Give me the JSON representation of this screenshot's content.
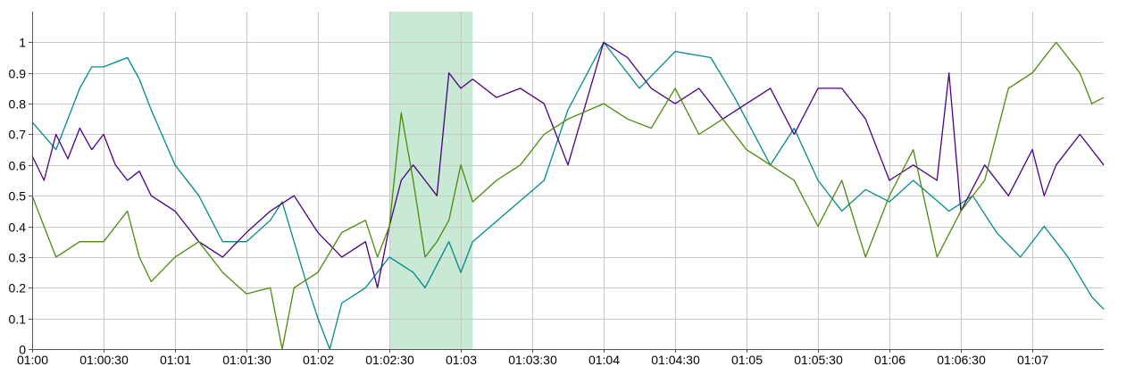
{
  "chart_data": {
    "type": "line",
    "title": "",
    "xlabel": "",
    "ylabel": "",
    "grid": true,
    "legend": "none",
    "xlim": [
      "01:00",
      "01:07:30"
    ],
    "ylim": [
      0,
      1.1
    ],
    "x_tick_labels": [
      "01:00",
      "01:00:30",
      "01:01",
      "01:01:30",
      "01:02",
      "01:02:30",
      "01:03",
      "01:03:30",
      "01:04",
      "01:04:30",
      "01:05",
      "01:05:30",
      "01:06",
      "01:06:30",
      "01:07"
    ],
    "y_tick_labels": [
      "0",
      "0.1",
      "0.2",
      "0.3",
      "0.4",
      "0.5",
      "0.6",
      "0.7",
      "0.8",
      "0.9",
      "1"
    ],
    "highlight_band": {
      "from": "01:02:30",
      "to": "01:03:05",
      "color": "#c8e9d4"
    },
    "series": [
      {
        "color": "#008b8b",
        "x": [
          "01:00:00",
          "01:00:10",
          "01:00:20",
          "01:00:25",
          "01:00:30",
          "01:00:40",
          "01:00:45",
          "01:00:50",
          "01:01:00",
          "01:01:10",
          "01:01:20",
          "01:01:30",
          "01:01:40",
          "01:01:45",
          "01:01:50",
          "01:01:55",
          "01:02:00",
          "01:02:05",
          "01:02:10",
          "01:02:20",
          "01:02:30",
          "01:02:40",
          "01:02:45",
          "01:02:55",
          "01:03:00",
          "01:03:05",
          "01:03:20",
          "01:03:35",
          "01:03:45",
          "01:04:00",
          "01:04:15",
          "01:04:30",
          "01:04:45",
          "01:04:55",
          "01:05:10",
          "01:05:20",
          "01:05:30",
          "01:05:40",
          "01:05:50",
          "01:06:00",
          "01:06:10",
          "01:06:25",
          "01:06:35",
          "01:06:45",
          "01:06:55",
          "01:07:05",
          "01:07:15",
          "01:07:25",
          "01:07:30"
        ],
        "y": [
          0.74,
          0.65,
          0.85,
          0.92,
          0.92,
          0.95,
          0.88,
          0.78,
          0.6,
          0.5,
          0.35,
          0.35,
          0.42,
          0.48,
          0.35,
          0.22,
          0.1,
          0.0,
          0.15,
          0.2,
          0.3,
          0.25,
          0.2,
          0.35,
          0.25,
          0.35,
          0.45,
          0.55,
          0.78,
          1.0,
          0.85,
          0.97,
          0.95,
          0.82,
          0.6,
          0.72,
          0.55,
          0.45,
          0.52,
          0.48,
          0.55,
          0.45,
          0.5,
          0.38,
          0.3,
          0.4,
          0.3,
          0.17,
          0.13
        ]
      },
      {
        "color": "#4b0082",
        "x": [
          "01:00:00",
          "01:00:05",
          "01:00:10",
          "01:00:15",
          "01:00:20",
          "01:00:25",
          "01:00:30",
          "01:00:35",
          "01:00:40",
          "01:00:45",
          "01:00:50",
          "01:01:00",
          "01:01:10",
          "01:01:20",
          "01:01:30",
          "01:01:40",
          "01:01:50",
          "01:02:00",
          "01:02:10",
          "01:02:20",
          "01:02:25",
          "01:02:30",
          "01:02:35",
          "01:02:40",
          "01:02:45",
          "01:02:50",
          "01:02:55",
          "01:03:00",
          "01:03:05",
          "01:03:15",
          "01:03:25",
          "01:03:35",
          "01:03:45",
          "01:04:00",
          "01:04:10",
          "01:04:20",
          "01:04:30",
          "01:04:40",
          "01:04:50",
          "01:05:00",
          "01:05:10",
          "01:05:20",
          "01:05:30",
          "01:05:40",
          "01:05:50",
          "01:06:00",
          "01:06:10",
          "01:06:20",
          "01:06:25",
          "01:06:30",
          "01:06:40",
          "01:06:50",
          "01:07:00",
          "01:07:05",
          "01:07:10",
          "01:07:20",
          "01:07:30"
        ],
        "y": [
          0.63,
          0.55,
          0.7,
          0.62,
          0.72,
          0.65,
          0.7,
          0.6,
          0.55,
          0.58,
          0.5,
          0.45,
          0.35,
          0.3,
          0.38,
          0.45,
          0.5,
          0.38,
          0.3,
          0.35,
          0.2,
          0.4,
          0.55,
          0.6,
          0.55,
          0.5,
          0.9,
          0.85,
          0.88,
          0.82,
          0.85,
          0.8,
          0.6,
          1.0,
          0.95,
          0.85,
          0.8,
          0.85,
          0.75,
          0.8,
          0.85,
          0.7,
          0.85,
          0.85,
          0.75,
          0.55,
          0.6,
          0.55,
          0.9,
          0.45,
          0.6,
          0.5,
          0.65,
          0.5,
          0.6,
          0.7,
          0.6
        ]
      },
      {
        "color": "#4d8a0b",
        "x": [
          "01:00:00",
          "01:00:05",
          "01:00:10",
          "01:00:20",
          "01:00:30",
          "01:00:40",
          "01:00:45",
          "01:00:50",
          "01:01:00",
          "01:01:10",
          "01:01:20",
          "01:01:30",
          "01:01:40",
          "01:01:45",
          "01:01:50",
          "01:02:00",
          "01:02:10",
          "01:02:20",
          "01:02:25",
          "01:02:30",
          "01:02:35",
          "01:02:40",
          "01:02:45",
          "01:02:50",
          "01:02:55",
          "01:03:00",
          "01:03:05",
          "01:03:15",
          "01:03:25",
          "01:03:35",
          "01:03:45",
          "01:04:00",
          "01:04:10",
          "01:04:20",
          "01:04:30",
          "01:04:40",
          "01:04:50",
          "01:05:00",
          "01:05:10",
          "01:05:20",
          "01:05:30",
          "01:05:40",
          "01:05:50",
          "01:06:00",
          "01:06:10",
          "01:06:20",
          "01:06:30",
          "01:06:40",
          "01:06:50",
          "01:07:00",
          "01:07:05",
          "01:07:10",
          "01:07:15",
          "01:07:20",
          "01:07:25",
          "01:07:30"
        ],
        "y": [
          0.5,
          0.4,
          0.3,
          0.35,
          0.35,
          0.45,
          0.3,
          0.22,
          0.3,
          0.35,
          0.25,
          0.18,
          0.2,
          0.0,
          0.2,
          0.25,
          0.38,
          0.42,
          0.3,
          0.4,
          0.77,
          0.55,
          0.3,
          0.35,
          0.42,
          0.6,
          0.48,
          0.55,
          0.6,
          0.7,
          0.75,
          0.8,
          0.75,
          0.72,
          0.85,
          0.7,
          0.75,
          0.65,
          0.6,
          0.55,
          0.4,
          0.55,
          0.3,
          0.5,
          0.65,
          0.3,
          0.45,
          0.55,
          0.85,
          0.9,
          0.95,
          1.0,
          0.95,
          0.9,
          0.8,
          0.82
        ]
      }
    ]
  }
}
